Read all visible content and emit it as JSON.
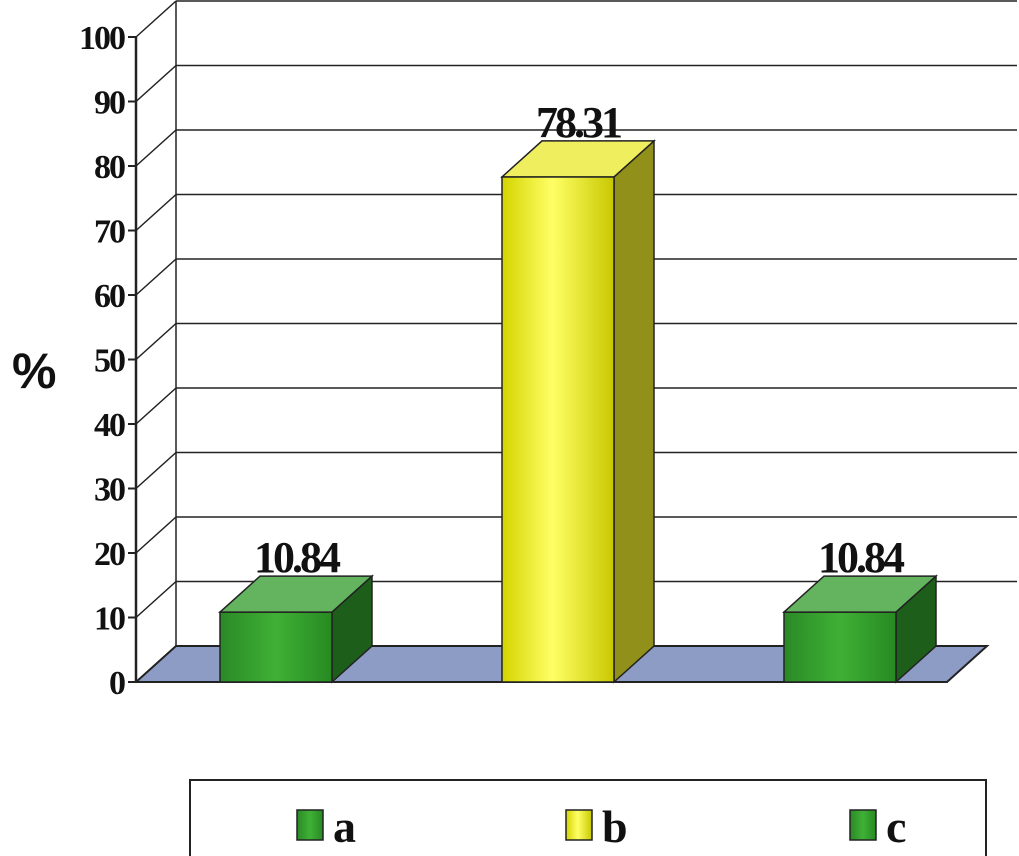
{
  "chart_data": {
    "type": "bar",
    "categories": [
      "a",
      "b",
      "c"
    ],
    "values": [
      10.84,
      78.31,
      10.84
    ],
    "data_labels": [
      "10.84",
      "78.31",
      "10.84"
    ],
    "colors": [
      "#2f9a2a",
      "#e8e82a",
      "#2f9a2a"
    ],
    "ylabel": "%",
    "ylim": [
      0,
      100
    ],
    "yticks": [
      "0",
      "10",
      "20",
      "30",
      "40",
      "50",
      "60",
      "70",
      "80",
      "90",
      "100"
    ],
    "grid": true,
    "three_d": true,
    "floor_color": "#8c9cc4",
    "legend": {
      "placement": "bottom",
      "items": [
        "a",
        "b",
        "c"
      ]
    }
  }
}
